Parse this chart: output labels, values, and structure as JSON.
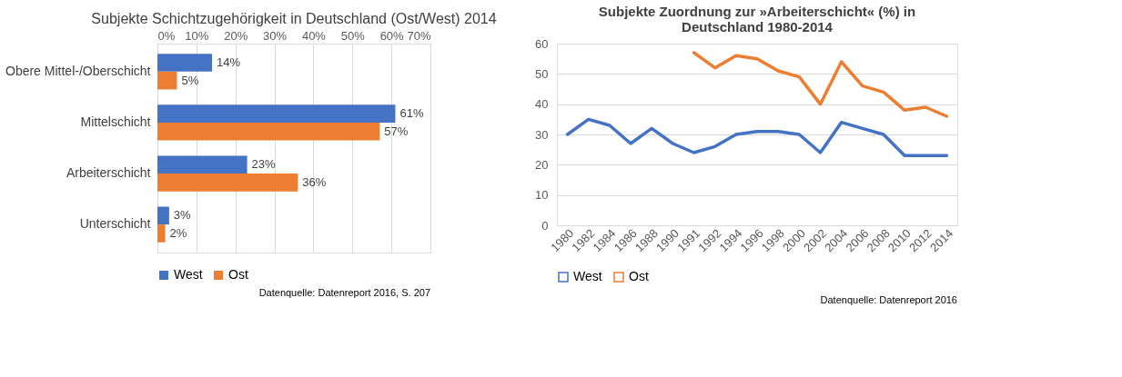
{
  "chart_data": [
    {
      "type": "bar",
      "orientation": "horizontal",
      "title": "Subjekte Schichtzugehörigkeit in Deutschland (Ost/West) 2014",
      "categories": [
        "Obere Mittel-/Oberschicht",
        "Mittelschicht",
        "Arbeiterschicht",
        "Unterschicht"
      ],
      "series": [
        {
          "name": "West",
          "color": "#4472c4",
          "values": [
            14,
            61,
            23,
            3
          ],
          "value_labels": [
            "14%",
            "61%",
            "23%",
            "3%"
          ]
        },
        {
          "name": "Ost",
          "color": "#ed7d31",
          "values": [
            5,
            57,
            36,
            2
          ],
          "value_labels": [
            "5%",
            "57%",
            "36%",
            "2%"
          ]
        }
      ],
      "xlim": [
        0,
        70
      ],
      "xticks": [
        {
          "value": 0,
          "label": "0%"
        },
        {
          "value": 10,
          "label": "10%"
        },
        {
          "value": 20,
          "label": "20%"
        },
        {
          "value": 30,
          "label": "30%"
        },
        {
          "value": 40,
          "label": "40%"
        },
        {
          "value": 50,
          "label": "50%"
        },
        {
          "value": 60,
          "label": "60%"
        },
        {
          "value": 70,
          "label": "70%"
        }
      ],
      "grid": "x",
      "legend": "bottom",
      "annotations": [
        "Datenquelle: Datenreport 2016, S. 207"
      ]
    },
    {
      "type": "line",
      "title": "Subjekte Zuordnung zur »Arbeiterschicht« (%) in Deutschland 1980-2014",
      "categories": [
        "1980",
        "1982",
        "1984",
        "1986",
        "1988",
        "1990",
        "1991",
        "1992",
        "1994",
        "1996",
        "1998",
        "2000",
        "2002",
        "2004",
        "2006",
        "2008",
        "2010",
        "2012",
        "2014"
      ],
      "series": [
        {
          "name": "West",
          "color": "#4472c4",
          "values": [
            30,
            35,
            33,
            27,
            32,
            27,
            24,
            26,
            30,
            31,
            31,
            30,
            24,
            34,
            32,
            30,
            23,
            23,
            23
          ]
        },
        {
          "name": "Ost",
          "color": "#ed7d31",
          "values": [
            null,
            null,
            null,
            null,
            null,
            null,
            57,
            52,
            56,
            55,
            51,
            49,
            40,
            54,
            46,
            44,
            38,
            39,
            36
          ]
        }
      ],
      "ylim": [
        0,
        60
      ],
      "yticks": [
        0,
        10,
        20,
        30,
        40,
        50,
        60
      ],
      "grid": "y",
      "legend": "bottom",
      "marker": "none",
      "line_style": "solid",
      "annotations": [
        "Datenquelle: Datenreport 2016"
      ]
    }
  ]
}
